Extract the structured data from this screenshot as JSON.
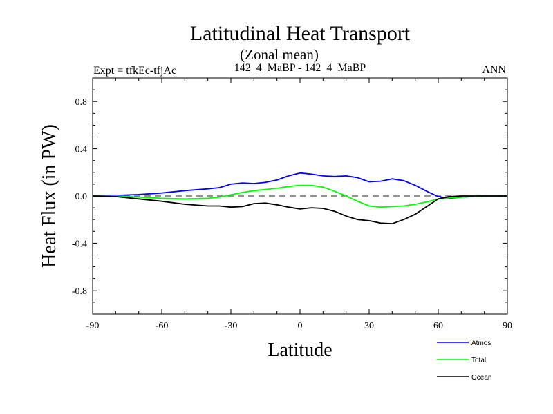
{
  "chart_data": {
    "type": "line",
    "title": "Latitudinal Heat Transport",
    "subtitle": "(Zonal mean)",
    "case_label": "142_4_MaBP - 142_4_MaBP",
    "left_label": "Expt = tfkEc-tfjAc",
    "right_label": "ANN",
    "xlabel": "Latitude",
    "ylabel": "Heat Flux (in PW)",
    "xlim": [
      -90,
      90
    ],
    "ylim": [
      -1.0,
      1.0
    ],
    "xticks": [
      -90,
      -60,
      -30,
      0,
      30,
      60,
      90
    ],
    "xtick_labels": [
      "-90",
      "-60",
      "-30",
      "0",
      "30",
      "60",
      "90"
    ],
    "yticks": [
      -0.8,
      -0.4,
      0.0,
      0.4,
      0.8
    ],
    "ytick_labels": [
      "-0.8",
      "-0.4",
      "0.0",
      "0.4",
      "0.8"
    ],
    "zero_line": true,
    "legend_position": "bottom-right",
    "series": [
      {
        "name": "Atmos",
        "color": "#0000ff",
        "x": [
          -90,
          -80,
          -70,
          -60,
          -50,
          -40,
          -35,
          -30,
          -25,
          -20,
          -15,
          -10,
          -5,
          0,
          5,
          10,
          15,
          20,
          25,
          30,
          35,
          40,
          45,
          50,
          55,
          60,
          65,
          70,
          80,
          90
        ],
        "y": [
          0.0,
          0.005,
          0.012,
          0.025,
          0.045,
          0.06,
          0.07,
          0.1,
          0.11,
          0.105,
          0.115,
          0.135,
          0.17,
          0.195,
          0.185,
          0.17,
          0.165,
          0.17,
          0.155,
          0.12,
          0.125,
          0.145,
          0.13,
          0.09,
          0.04,
          -0.005,
          -0.02,
          -0.01,
          0.0,
          0.0
        ]
      },
      {
        "name": "Total",
        "color": "#00ff00",
        "x": [
          -90,
          -80,
          -70,
          -60,
          -50,
          -40,
          -35,
          -30,
          -25,
          -20,
          -15,
          -10,
          -5,
          0,
          5,
          10,
          15,
          20,
          25,
          30,
          35,
          40,
          45,
          50,
          55,
          60,
          65,
          70,
          80,
          90
        ],
        "y": [
          0.0,
          0.0,
          -0.01,
          -0.02,
          -0.025,
          -0.02,
          -0.01,
          0.01,
          0.03,
          0.045,
          0.055,
          0.065,
          0.08,
          0.09,
          0.09,
          0.075,
          0.04,
          0.0,
          -0.045,
          -0.085,
          -0.095,
          -0.09,
          -0.085,
          -0.07,
          -0.05,
          -0.025,
          -0.015,
          -0.01,
          0.0,
          0.0
        ]
      },
      {
        "name": "Ocean",
        "color": "#000000",
        "x": [
          -90,
          -80,
          -70,
          -60,
          -50,
          -40,
          -35,
          -30,
          -25,
          -20,
          -15,
          -10,
          -5,
          0,
          5,
          10,
          15,
          20,
          25,
          30,
          35,
          40,
          45,
          50,
          55,
          60,
          65,
          70,
          80,
          90
        ],
        "y": [
          0.0,
          -0.005,
          -0.025,
          -0.045,
          -0.07,
          -0.085,
          -0.085,
          -0.095,
          -0.09,
          -0.065,
          -0.06,
          -0.075,
          -0.095,
          -0.11,
          -0.1,
          -0.105,
          -0.13,
          -0.17,
          -0.2,
          -0.21,
          -0.23,
          -0.235,
          -0.2,
          -0.155,
          -0.09,
          -0.025,
          -0.005,
          0.0,
          0.0,
          0.0
        ]
      }
    ]
  }
}
